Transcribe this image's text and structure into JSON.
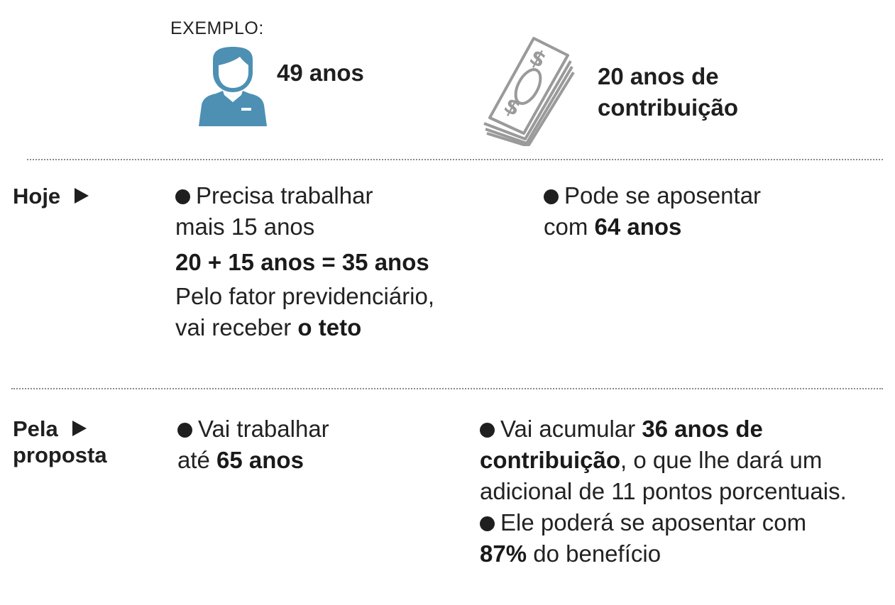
{
  "header": {
    "example_label": "EXEMPLO:",
    "age": "49 anos",
    "contribution_line1": "20 anos de",
    "contribution_line2": "contribuição"
  },
  "icons": {
    "person": "person-icon",
    "money": "money-stack-icon"
  },
  "colors": {
    "person_icon": "#4d90b4",
    "money_icon": "#9a9a9a",
    "text": "#222222"
  },
  "hoje": {
    "label": "Hoje",
    "left": {
      "line1": "Precisa trabalhar",
      "line2": "mais 15 anos",
      "equation": "20 + 15 anos = 35 anos",
      "line3": "Pelo fator previdenciário,",
      "line4_prefix": "vai receber",
      "line4_bold": "o teto"
    },
    "right": {
      "line1": "Pode se aposentar",
      "line2_prefix": "com",
      "line2_bold": "64 anos"
    }
  },
  "proposta": {
    "label_line1": "Pela",
    "label_line2": "proposta",
    "left": {
      "line1": "Vai trabalhar",
      "line2_prefix": "até",
      "line2_bold": "65 anos"
    },
    "right": {
      "b1_prefix": "Vai acumular",
      "b1_bold_a": "36 anos de",
      "b1_bold_b": "contribuição",
      "b1_rest": ", o que lhe dará um",
      "b1_line3": "adicional de 11 pontos porcentuais.",
      "b2_line1": "Ele poderá se aposentar com",
      "b2_bold": "87%",
      "b2_rest": "do benefício"
    }
  }
}
